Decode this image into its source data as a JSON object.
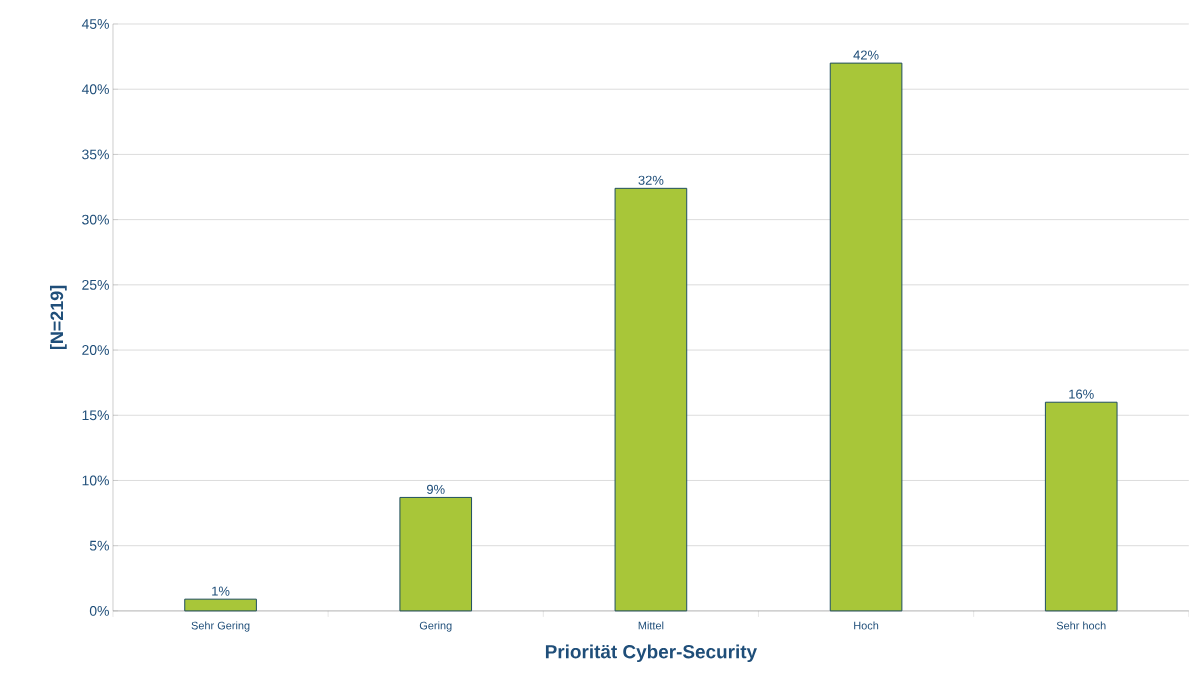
{
  "chart_data": {
    "type": "bar",
    "xlabel": "Priorität Cyber-Security",
    "ylabel": "[N=219]",
    "categories": [
      "Sehr Gering",
      "Gering",
      "Mittel",
      "Hoch",
      "Sehr hoch"
    ],
    "values": [
      0.9,
      8.7,
      32.4,
      42.0,
      16.0
    ],
    "value_labels": [
      "1%",
      "9%",
      "32%",
      "42%",
      "16%"
    ],
    "color": "#a8c639",
    "ylim": [
      0,
      45
    ],
    "yticks": [
      {
        "value": 0,
        "label": "0%"
      },
      {
        "value": 5,
        "label": "5%"
      },
      {
        "value": 10,
        "label": "10%"
      },
      {
        "value": 15,
        "label": "15%"
      },
      {
        "value": 20,
        "label": "20%"
      },
      {
        "value": 25,
        "label": "25%"
      },
      {
        "value": 30,
        "label": "30%"
      },
      {
        "value": 35,
        "label": "35%"
      },
      {
        "value": 40,
        "label": "40%"
      },
      {
        "value": 45,
        "label": "45%"
      }
    ],
    "grid": "y"
  }
}
